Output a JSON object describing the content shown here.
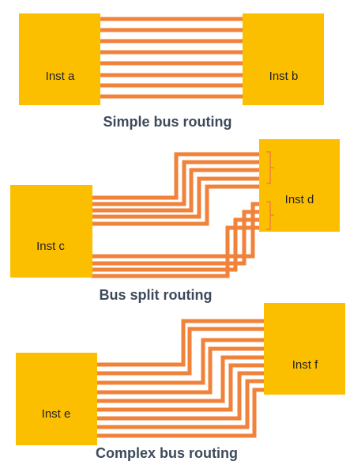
{
  "colors": {
    "block_fill": "#fcbf00",
    "wire": "#f0823a",
    "caption_text": "#3d4a5a",
    "label_text": "#222222"
  },
  "simple": {
    "inst_a": "Inst a",
    "inst_b": "Inst b",
    "caption": "Simple bus routing"
  },
  "split": {
    "inst_c": "Inst c",
    "inst_d": "Inst d",
    "caption": "Bus split routing"
  },
  "complex": {
    "inst_e": "Inst e",
    "inst_f": "Inst f",
    "caption": "Complex bus routing"
  }
}
